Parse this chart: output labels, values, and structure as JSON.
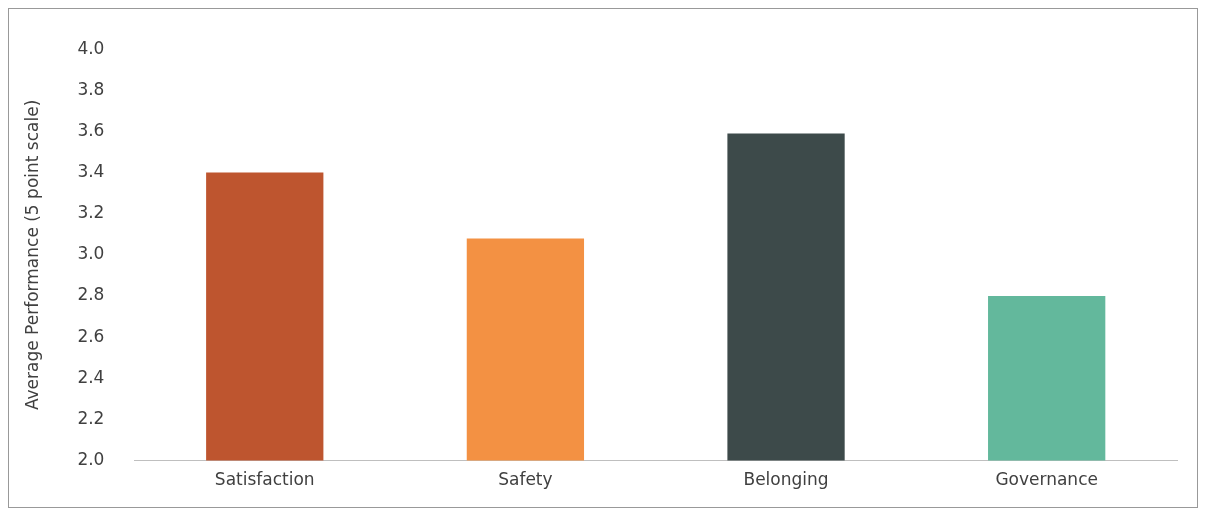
{
  "chart_data": {
    "type": "bar",
    "ylabel": "Average Performance (5 point scale)",
    "categories": [
      "Satisfaction",
      "Safety",
      "Belonging",
      "Governance"
    ],
    "values": [
      3.4,
      3.08,
      3.59,
      2.8
    ],
    "colors": [
      "#be552f",
      "#f39143",
      "#3d4a4a",
      "#63b89c"
    ],
    "ylim": [
      2.0,
      4.0
    ],
    "yticks": [
      {
        "value": 2.0,
        "label": "2.0"
      },
      {
        "value": 2.2,
        "label": "2.2"
      },
      {
        "value": 2.4,
        "label": "2.4"
      },
      {
        "value": 2.6,
        "label": "2.6"
      },
      {
        "value": 2.8,
        "label": "2.8"
      },
      {
        "value": 3.0,
        "label": "3.0"
      },
      {
        "value": 3.2,
        "label": "3.2"
      },
      {
        "value": 3.4,
        "label": "3.4"
      },
      {
        "value": 3.6,
        "label": "3.6"
      },
      {
        "value": 3.8,
        "label": "3.8"
      },
      {
        "value": 4.0,
        "label": "4.0"
      }
    ],
    "grid": false,
    "legend": false
  }
}
